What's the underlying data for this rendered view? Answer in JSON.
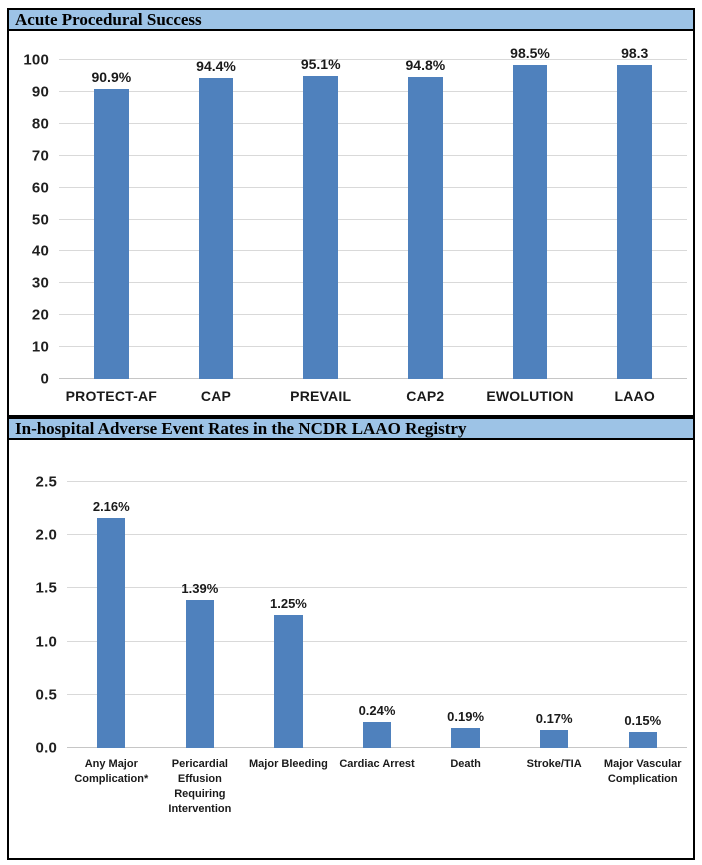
{
  "colors": {
    "bar": "#4F81BD",
    "header_background": "#9DC3E6",
    "border": "#000000",
    "gridline": "#D9D9D9",
    "label_text": "#1A1A1A"
  },
  "sections": [
    {
      "header": "Acute Procedural Success"
    },
    {
      "header": "In-hospital Adverse Event Rates in the NCDR LAAO Registry"
    }
  ],
  "chart_data": [
    {
      "type": "bar",
      "title": "Acute Procedural Success",
      "categories": [
        "PROTECT-AF",
        "CAP",
        "PREVAIL",
        "CAP2",
        "EWOLUTION",
        "LAAO"
      ],
      "values": [
        90.9,
        94.4,
        95.1,
        94.8,
        98.5,
        98.3
      ],
      "data_labels": [
        "90.9%",
        "94.4%",
        "95.1%",
        "94.8%",
        "98.5%",
        "98.3"
      ],
      "xlabel": "",
      "ylabel": "",
      "ylim": [
        0,
        100
      ],
      "yticks": [
        0,
        10,
        20,
        30,
        40,
        50,
        60,
        70,
        80,
        90,
        100
      ],
      "ytick_labels": [
        "0",
        "10",
        "20",
        "30",
        "40",
        "50",
        "60",
        "70",
        "80",
        "90",
        "100"
      ],
      "grid": true,
      "legend": "none",
      "bar_color": "#4F81BD"
    },
    {
      "type": "bar",
      "title": "In-hospital Adverse Event Rates in the NCDR LAAO Registry",
      "categories": [
        "Any Major\nComplication*",
        "Pericardial\nEffusion\nRequiring\nIntervention",
        "Major Bleeding",
        "Cardiac Arrest",
        "Death",
        "Stroke/TIA",
        "Major Vascular\nComplication"
      ],
      "values": [
        2.16,
        1.39,
        1.25,
        0.24,
        0.19,
        0.17,
        0.15
      ],
      "data_labels": [
        "2.16%",
        "1.39%",
        "1.25%",
        "0.24%",
        "0.19%",
        "0.17%",
        "0.15%"
      ],
      "xlabel": "",
      "ylabel": "",
      "ylim": [
        0,
        2.5
      ],
      "yticks": [
        0,
        0.5,
        1.0,
        1.5,
        2.0,
        2.5
      ],
      "ytick_labels": [
        "0.0",
        "0.5",
        "1.0",
        "1.5",
        "2.0",
        "2.5"
      ],
      "grid": true,
      "legend": "none",
      "bar_color": "#4F81BD"
    }
  ]
}
